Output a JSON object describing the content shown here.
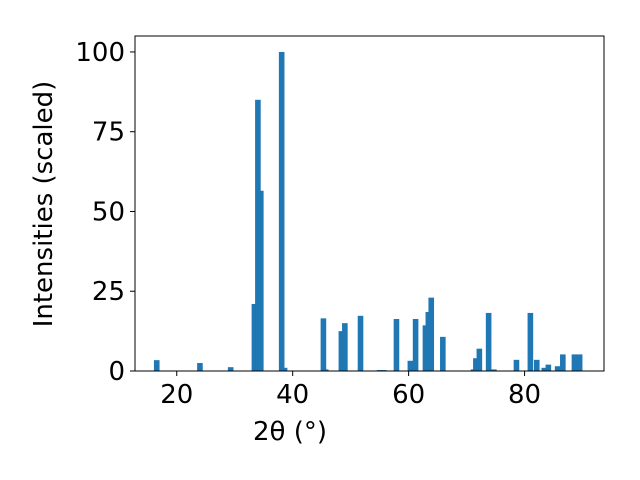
{
  "chart_data": {
    "type": "bar",
    "xlabel": "2θ (°)",
    "ylabel": "Intensities (scaled)",
    "x": [
      16.55,
      24.0,
      29.3,
      33.4,
      34.0,
      34.5,
      38.1,
      38.6,
      45.3,
      45.7,
      48.4,
      49.0,
      51.7,
      55.0,
      55.7,
      57.9,
      60.3,
      61.2,
      62.9,
      63.4,
      63.9,
      65.9,
      71.2,
      71.6,
      72.2,
      73.8,
      74.7,
      78.6,
      81.0,
      82.1,
      83.4,
      84.1,
      85.7,
      86.6,
      88.6,
      89.5
    ],
    "values": [
      3.4,
      2.5,
      1.2,
      21,
      85,
      56.5,
      100,
      1,
      16.5,
      0.5,
      12.5,
      15,
      17.3,
      0.3,
      0.3,
      16.3,
      3.2,
      16.3,
      14.3,
      18.5,
      23,
      10.7,
      0.5,
      4,
      7,
      18.2,
      0.5,
      3.5,
      18.2,
      3.5,
      1,
      2,
      1.5,
      5.2,
      5.2,
      5.2
    ],
    "color": "#1f77b4",
    "xlim": [
      12.8,
      93.7
    ],
    "ylim": [
      0,
      105
    ],
    "xticks": [
      20,
      40,
      60,
      80
    ],
    "yticks": [
      0,
      25,
      50,
      75,
      100
    ]
  }
}
